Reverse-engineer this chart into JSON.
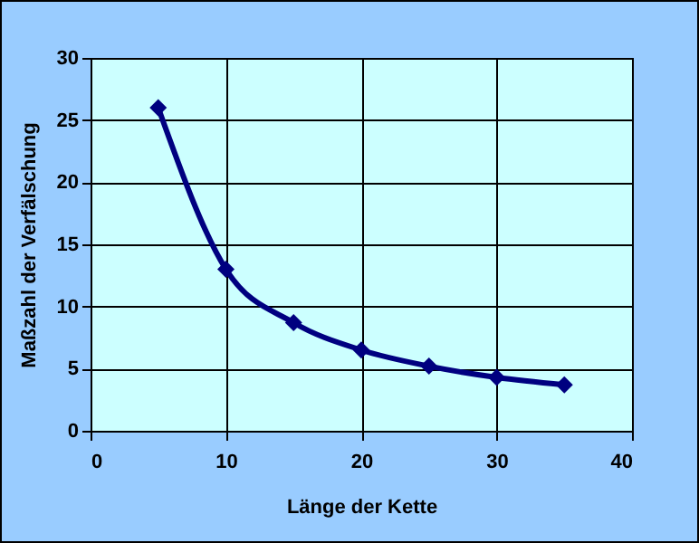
{
  "chart_data": {
    "type": "line",
    "xlabel": "Länge der Kette",
    "ylabel": "Maßzahl der Verfälschung",
    "x": [
      5,
      10,
      15,
      20,
      25,
      30,
      35
    ],
    "series": [
      {
        "color": "#000080",
        "values": [
          26,
          13,
          8.7,
          6.5,
          5.2,
          4.3,
          3.7
        ]
      }
    ],
    "xlim": [
      0,
      40
    ],
    "xticks": [
      0,
      10,
      20,
      30,
      40
    ],
    "ylim": [
      0,
      30
    ],
    "yticks": [
      0,
      5,
      10,
      15,
      20,
      25,
      30
    ],
    "grid": true,
    "marker": "diamond",
    "line_style": "solid"
  }
}
